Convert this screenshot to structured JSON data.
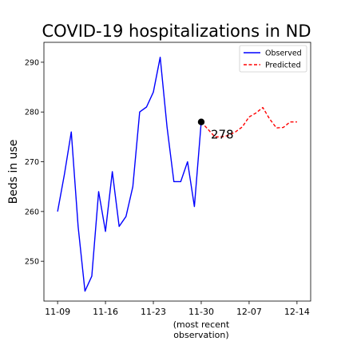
{
  "chart_data": {
    "type": "line",
    "title": "COVID-19 hospitalizations in ND",
    "xlabel": "",
    "ylabel": "Beds in use",
    "x_ticks": [
      "11-09",
      "11-16",
      "11-23",
      "11-30",
      "12-07",
      "12-14"
    ],
    "x_tick_sublabel": "(most recent\nobservation)",
    "x_range": [
      -2,
      37
    ],
    "ylim": [
      242,
      294
    ],
    "y_ticks": [
      250,
      260,
      270,
      280,
      290
    ],
    "grid": false,
    "legend_position": "top-right",
    "series": [
      {
        "name": "Observed",
        "color": "#0000ff",
        "style": "solid",
        "x": [
          0,
          1,
          2,
          3,
          4,
          5,
          6,
          7,
          8,
          9,
          10,
          11,
          12,
          13,
          14,
          15,
          16,
          17,
          18,
          19,
          20,
          21
        ],
        "values": [
          260,
          267.5,
          276,
          257,
          244,
          247,
          264,
          256,
          268,
          257,
          259,
          265,
          280,
          281,
          284,
          291,
          277,
          266,
          266,
          270,
          261,
          278
        ]
      },
      {
        "name": "Predicted",
        "color": "#ff0000",
        "style": "dashed",
        "x": [
          21,
          22,
          23,
          24,
          25,
          26,
          27,
          28,
          29,
          30,
          31,
          32,
          33,
          34,
          35
        ],
        "values": [
          278,
          276.5,
          275,
          275,
          275.3,
          276,
          277,
          279,
          279.8,
          280.9,
          278.6,
          276.8,
          276.9,
          278,
          278
        ]
      }
    ],
    "annotation": {
      "text": "278",
      "x": 21,
      "y": 278
    }
  }
}
